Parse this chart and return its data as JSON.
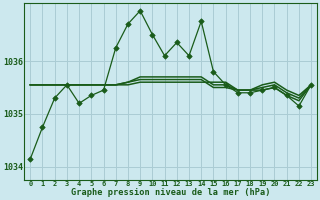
{
  "title": "Graphe pression niveau de la mer (hPa)",
  "background_color": "#cce8ee",
  "grid_color": "#aaccd4",
  "line_color": "#1a5c1a",
  "x_labels": [
    "0",
    "1",
    "2",
    "3",
    "4",
    "5",
    "6",
    "7",
    "8",
    "9",
    "10",
    "11",
    "12",
    "13",
    "14",
    "15",
    "16",
    "17",
    "18",
    "19",
    "20",
    "21",
    "22",
    "23"
  ],
  "ylim": [
    1033.75,
    1037.1
  ],
  "yticks": [
    1034,
    1035,
    1036
  ],
  "series_main": [
    1034.15,
    1034.75,
    1035.3,
    1035.55,
    1035.2,
    1035.35,
    1035.45,
    1036.25,
    1036.7,
    1036.95,
    1036.5,
    1036.1,
    1036.35,
    1036.1,
    1036.75,
    1035.8,
    1035.55,
    1035.4,
    1035.4,
    1035.45,
    1035.5,
    1035.35,
    1035.15,
    1035.55
  ],
  "series_b": [
    1035.55,
    1035.55,
    1035.55,
    1035.55,
    1035.55,
    1035.55,
    1035.55,
    1035.55,
    1035.55,
    1035.6,
    1035.6,
    1035.6,
    1035.6,
    1035.6,
    1035.6,
    1035.6,
    1035.6,
    1035.45,
    1035.45,
    1035.45,
    1035.5,
    1035.35,
    1035.25,
    1035.55
  ],
  "series_c": [
    1035.55,
    1035.55,
    1035.55,
    1035.55,
    1035.55,
    1035.55,
    1035.55,
    1035.55,
    1035.6,
    1035.65,
    1035.65,
    1035.65,
    1035.65,
    1035.65,
    1035.65,
    1035.5,
    1035.5,
    1035.45,
    1035.45,
    1035.5,
    1035.55,
    1035.4,
    1035.3,
    1035.55
  ],
  "series_d": [
    1035.55,
    1035.55,
    1035.55,
    1035.55,
    1035.55,
    1035.55,
    1035.55,
    1035.55,
    1035.6,
    1035.7,
    1035.7,
    1035.7,
    1035.7,
    1035.7,
    1035.7,
    1035.55,
    1035.55,
    1035.45,
    1035.45,
    1035.55,
    1035.6,
    1035.45,
    1035.35,
    1035.55
  ]
}
